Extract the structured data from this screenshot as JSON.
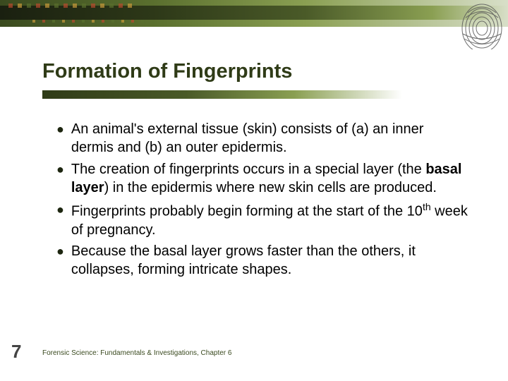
{
  "title": "Formation of Fingerprints",
  "bullets": [
    "An animal's external tissue (skin) consists of (a) an inner dermis and (b) an outer epidermis.",
    "The creation of fingerprints occurs in a special layer (the <b>basal layer</b>) in the epidermis where new skin cells are produced.",
    "Fingerprints probably begin forming at the start of the 10<sup>th</sup> week of pregnancy.",
    "Because the basal layer grows faster than the others, it collapses, forming intricate shapes."
  ],
  "page_number": "7",
  "footer": "Forensic Science: Fundamentals & Investigations, Chapter 6",
  "dot_colors_top": [
    "#b84a2e",
    "#c99a3a",
    "#5a6f2e",
    "#b84a2e",
    "#c99a3a",
    "#5a6f2e",
    "#b84a2e",
    "#c99a3a",
    "#5a6f2e",
    "#b84a2e",
    "#c99a3a",
    "#5a6f2e",
    "#b84a2e",
    "#c99a3a"
  ],
  "dot_colors_bottom": [
    "#c99a3a",
    "#b84a2e",
    "#5a6f2e",
    "#c99a3a",
    "#b84a2e",
    "#5a6f2e",
    "#c99a3a",
    "#b84a2e",
    "#5a6f2e",
    "#c99a3a",
    "#b84a2e",
    "#5a6f2e"
  ]
}
